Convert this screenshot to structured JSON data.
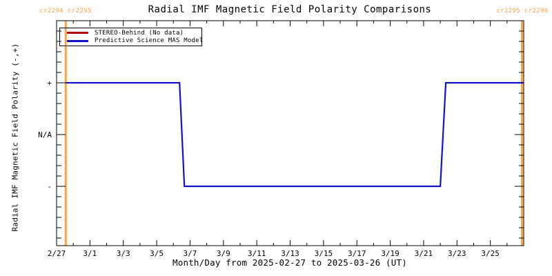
{
  "chart": {
    "title": "Radial IMF Magnetic Field Polarity Comparisons",
    "cr_left": "cr2294 cr2295",
    "cr_right": "cr2295 cr2296",
    "xaxis_title": "Month/Day from 2025-02-27 to 2025-03-26 (UT)",
    "yaxis_title": "Radial IMF Magnetic Field Polarity (-,+)"
  },
  "legend": {
    "items": [
      {
        "label": "STEREO-Behind (No data)",
        "color": "#aa0000"
      },
      {
        "label": "Predictive Science MAS Model",
        "color": "#1111cc"
      }
    ]
  },
  "chart_data": {
    "type": "line",
    "title": "Radial IMF Magnetic Field Polarity Comparisons",
    "xlabel": "Month/Day from 2025-02-27 to 2025-03-26 (UT)",
    "ylabel": "Radial IMF Magnetic Field Polarity (-,+)",
    "x_range_days": [
      0,
      28
    ],
    "x_start_date": "2025-02-27",
    "x_end_date": "2025-03-26",
    "x_major_ticks": [
      {
        "day": 0,
        "label": "2/27"
      },
      {
        "day": 2,
        "label": "3/1"
      },
      {
        "day": 4,
        "label": "3/3"
      },
      {
        "day": 6,
        "label": "3/5"
      },
      {
        "day": 8,
        "label": "3/7"
      },
      {
        "day": 10,
        "label": "3/9"
      },
      {
        "day": 12,
        "label": "3/11"
      },
      {
        "day": 14,
        "label": "3/13"
      },
      {
        "day": 16,
        "label": "3/15"
      },
      {
        "day": 18,
        "label": "3/17"
      },
      {
        "day": 20,
        "label": "3/19"
      },
      {
        "day": 22,
        "label": "3/21"
      },
      {
        "day": 24,
        "label": "3/23"
      },
      {
        "day": 26,
        "label": "3/25"
      }
    ],
    "x_minor_step_days": 1,
    "y_ticks": [
      {
        "value": 1,
        "label": "+"
      },
      {
        "value": 0,
        "label": "N/A"
      },
      {
        "value": -1,
        "label": "-"
      }
    ],
    "y_minor_step": 0.2,
    "y_range": [
      -2.2,
      2.2
    ],
    "grid": false,
    "legend_position": "top-left-inside",
    "series": [
      {
        "name": "STEREO-Behind (No data)",
        "color": "#aa0000",
        "points": []
      },
      {
        "name": "Predictive Science MAS Model",
        "color": "#1111cc",
        "points": [
          [
            0.55,
            1
          ],
          [
            7.37,
            1
          ],
          [
            7.66,
            -1
          ],
          [
            23.0,
            -1
          ],
          [
            23.33,
            1
          ],
          [
            28.0,
            1
          ]
        ]
      }
    ],
    "cr_boundaries": [
      {
        "day": 0.55,
        "label": "cr2294 cr2295"
      },
      {
        "day": 27.9,
        "label": "cr2295 cr2296"
      }
    ],
    "colors": {
      "boundary": "#ffa040",
      "frame": "#000000",
      "mas_model": "#1111cc",
      "stereo_behind": "#aa0000"
    }
  }
}
